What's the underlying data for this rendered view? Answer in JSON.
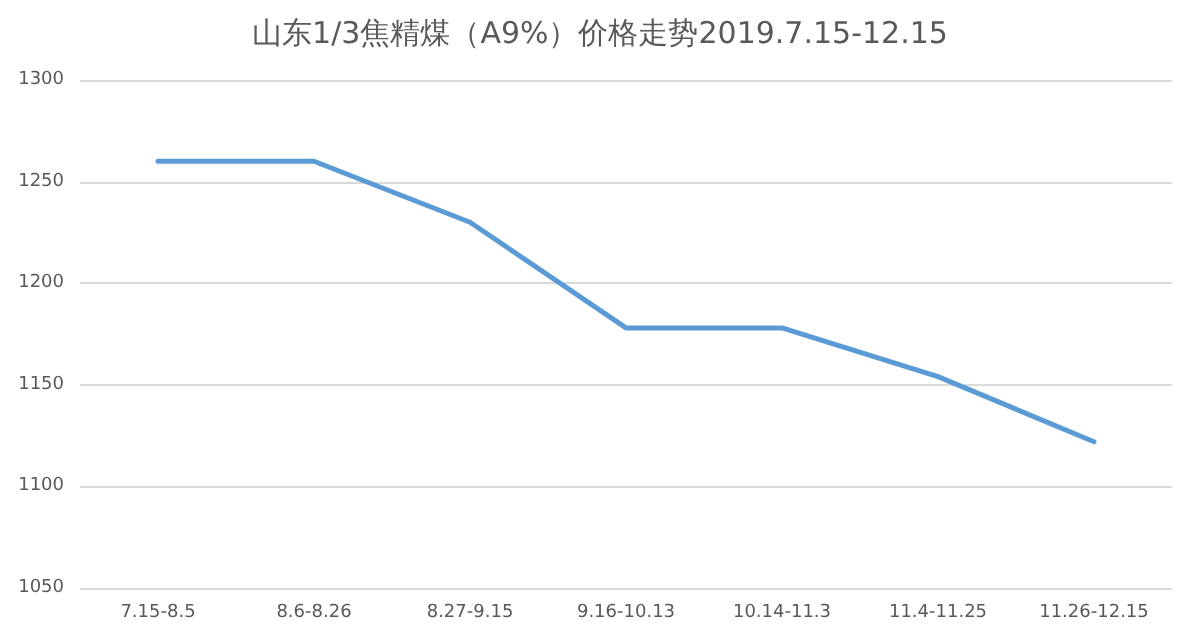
{
  "chart_data": {
    "type": "line",
    "title": "山东1/3焦精煤（A9%）价格走势2019.7.15-12.15",
    "categories": [
      "7.15-8.5",
      "8.6-8.26",
      "8.27-9.15",
      "9.16-10.13",
      "10.14-11.3",
      "11.4-11.25",
      "11.26-12.15"
    ],
    "series": [
      {
        "color": "#5b9bd5",
        "values": [
          1260,
          1260,
          1230,
          1178,
          1178,
          1154,
          1122
        ]
      }
    ],
    "ylim": [
      1050,
      1300
    ],
    "yticks": [
      1050,
      1100,
      1150,
      1200,
      1250,
      1300
    ],
    "grid": "y",
    "marker": "none",
    "line_style": "solid"
  }
}
